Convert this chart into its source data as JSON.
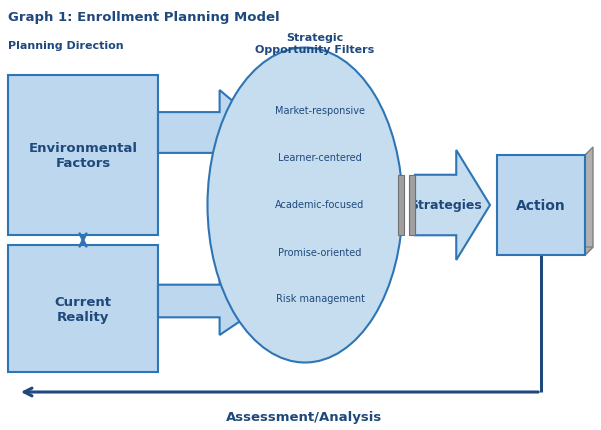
{
  "title": "Graph 1: Enrollment Planning Model",
  "bg_color": "#FFFFFF",
  "label_planning": "Planning Direction",
  "label_strategic": "Strategic\nOpportunity Filters",
  "label_env": "Environmental\nFactors",
  "label_current": "Current\nReality",
  "label_strategies": "Strategies",
  "label_action": "Action",
  "label_assessment": "Assessment/Analysis",
  "filters": [
    "Market-responsive",
    "Learner-centered",
    "Academic-focused",
    "Promise-oriented",
    "Risk management"
  ],
  "box_fill": "#BDD7EE",
  "box_edge": "#2E75B6",
  "ellipse_fill": "#C5DDEF",
  "ellipse_edge": "#2E75B6",
  "arrow_fill": "#C5DDEF",
  "arrow_edge": "#2E75B6",
  "action_fill": "#BDD7EE",
  "action_edge": "#2E75B6",
  "action_shadow_fill": "#B0B0B0",
  "action_shadow_edge": "#808080",
  "dark_blue": "#1F497D",
  "bar_fill": "#A0A0A0",
  "bar_edge": "#707070"
}
